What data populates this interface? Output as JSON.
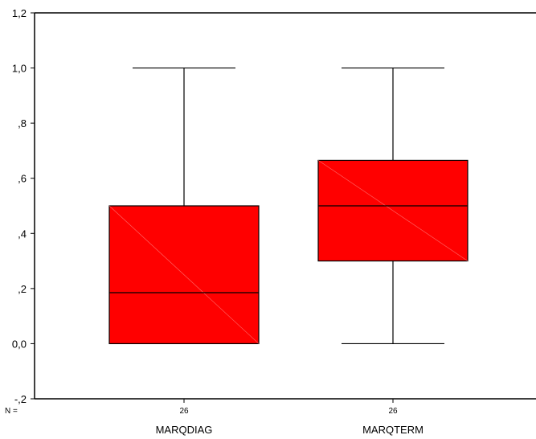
{
  "chart_data": {
    "type": "box",
    "title": "",
    "xlabel": "",
    "ylabel": "",
    "ylim": [
      -0.2,
      1.2
    ],
    "y_ticks": [
      {
        "value": 1.2,
        "label": "1,2"
      },
      {
        "value": 1.0,
        "label": "1,0"
      },
      {
        "value": 0.8,
        "label": ",8"
      },
      {
        "value": 0.6,
        "label": ",6"
      },
      {
        "value": 0.4,
        "label": ",4"
      },
      {
        "value": 0.2,
        "label": ",2"
      },
      {
        "value": 0.0,
        "label": "0,0"
      },
      {
        "value": -0.2,
        "label": "-,2"
      }
    ],
    "n_prefix": "N =",
    "categories": [
      "MARQDIAG",
      "MARQTERM"
    ],
    "n_values": [
      "26",
      "26"
    ],
    "boxes": [
      {
        "name": "MARQDIAG",
        "min": 0.0,
        "q1": 0.0,
        "median": 0.185,
        "q3": 0.5,
        "max": 1.0
      },
      {
        "name": "MARQTERM",
        "min": 0.0,
        "q1": 0.3,
        "median": 0.5,
        "q3": 0.665,
        "max": 1.0
      }
    ],
    "box_color": "#ff0000",
    "grid": false,
    "legend": "none"
  }
}
